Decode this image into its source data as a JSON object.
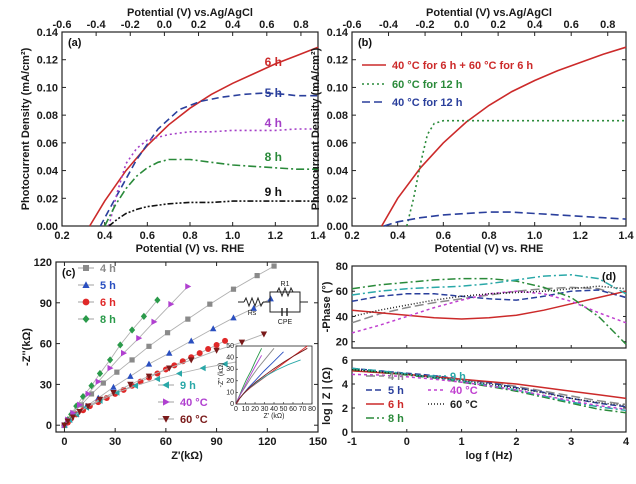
{
  "chart_data": [
    {
      "panel": "(a)",
      "type": "line",
      "xlabel": "Potential (V) vs. RHE",
      "x2label": "Potential (V) vs.Ag/AgCl",
      "ylabel": "Photocurrent Density (mA/cm²)",
      "xlim": [
        0.2,
        1.4
      ],
      "ylim": [
        0,
        0.14
      ],
      "x2lim": [
        -0.6,
        0.9
      ],
      "xticks": [
        "0.2",
        "0.4",
        "0.6",
        "0.8",
        "1.0",
        "1.2",
        "1.4"
      ],
      "x2ticks": [
        "-0.6",
        "-0.4",
        "-0.2",
        "0.0",
        "0.2",
        "0.4",
        "0.6",
        "0.8"
      ],
      "yticks": [
        "0.00",
        "0.02",
        "0.04",
        "0.06",
        "0.08",
        "0.10",
        "0.12",
        "0.14"
      ],
      "series": [
        {
          "name": "6 h",
          "color": "#cc2a2a",
          "dash": "",
          "x": [
            0.33,
            0.4,
            0.5,
            0.6,
            0.7,
            0.8,
            0.9,
            1.0,
            1.1,
            1.2,
            1.3,
            1.4
          ],
          "y": [
            0,
            0.018,
            0.04,
            0.058,
            0.073,
            0.085,
            0.095,
            0.103,
            0.11,
            0.117,
            0.123,
            0.129
          ]
        },
        {
          "name": "5 h",
          "color": "#2a3f9c",
          "dash": "7,4",
          "x": [
            0.38,
            0.45,
            0.55,
            0.65,
            0.75,
            0.85,
            0.95,
            1.05,
            1.15,
            1.25,
            1.3,
            1.4
          ],
          "y": [
            0,
            0.02,
            0.048,
            0.07,
            0.084,
            0.09,
            0.093,
            0.095,
            0.096,
            0.095,
            0.094,
            0.094
          ]
        },
        {
          "name": "4 h",
          "color": "#a43fc7",
          "dash": "2,3",
          "x": [
            0.42,
            0.46,
            0.5,
            0.55,
            0.6,
            0.7,
            0.8,
            0.9,
            1.0,
            1.1,
            1.2,
            1.3,
            1.4
          ],
          "y": [
            0,
            0.025,
            0.045,
            0.056,
            0.062,
            0.066,
            0.068,
            0.068,
            0.069,
            0.069,
            0.069,
            0.07,
            0.07
          ]
        },
        {
          "name": "8 h",
          "color": "#2a8a3a",
          "dash": "8,3,2,3",
          "x": [
            0.4,
            0.45,
            0.5,
            0.55,
            0.6,
            0.65,
            0.7,
            0.8,
            0.9,
            1.0,
            1.1,
            1.2,
            1.3,
            1.4
          ],
          "y": [
            0,
            0.015,
            0.027,
            0.036,
            0.042,
            0.046,
            0.048,
            0.048,
            0.046,
            0.044,
            0.043,
            0.042,
            0.041,
            0.041
          ]
        },
        {
          "name": "9 h",
          "color": "#111111",
          "dash": "6,2,2,2,2,2",
          "x": [
            0.42,
            0.46,
            0.5,
            0.55,
            0.6,
            0.7,
            0.8,
            0.9,
            1.0,
            1.1,
            1.2,
            1.3,
            1.4
          ],
          "y": [
            0,
            0.005,
            0.009,
            0.012,
            0.014,
            0.016,
            0.017,
            0.017,
            0.018,
            0.018,
            0.018,
            0.018,
            0.018
          ]
        }
      ]
    },
    {
      "panel": "(b)",
      "type": "line",
      "xlabel": "Potential (V) vs. RHE",
      "x2label": "Potential (V) vs.Ag/AgCl",
      "ylabel": "Photocurrent Density (mA/cm²)",
      "xlim": [
        0.2,
        1.4
      ],
      "ylim": [
        0,
        0.14
      ],
      "x2lim": [
        -0.6,
        0.9
      ],
      "xticks": [
        "0.2",
        "0.4",
        "0.6",
        "0.8",
        "1.0",
        "1.2",
        "1.4"
      ],
      "x2ticks": [
        "-0.6",
        "-0.4",
        "-0.2",
        "0.0",
        "0.2",
        "0.4",
        "0.6",
        "0.8"
      ],
      "yticks": [
        "0.00",
        "0.02",
        "0.04",
        "0.06",
        "0.08",
        "0.10",
        "0.12",
        "0.14"
      ],
      "legend": "top-right",
      "series": [
        {
          "name": "40 °C for 6 h + 60 °C for 6 h",
          "color": "#cc2a2a",
          "dash": "",
          "x": [
            0.33,
            0.4,
            0.5,
            0.6,
            0.7,
            0.8,
            0.9,
            1.0,
            1.1,
            1.2,
            1.3,
            1.4
          ],
          "y": [
            0,
            0.02,
            0.042,
            0.06,
            0.075,
            0.087,
            0.097,
            0.105,
            0.112,
            0.118,
            0.124,
            0.129
          ]
        },
        {
          "name": "60 °C for 12 h",
          "color": "#2a8a3a",
          "dash": "2,3",
          "x": [
            0.44,
            0.47,
            0.5,
            0.53,
            0.56,
            0.6,
            0.7,
            0.8,
            0.9,
            1.0,
            1.1,
            1.2,
            1.3,
            1.4
          ],
          "y": [
            0,
            0.02,
            0.045,
            0.066,
            0.074,
            0.076,
            0.076,
            0.076,
            0.076,
            0.076,
            0.076,
            0.076,
            0.076,
            0.076
          ]
        },
        {
          "name": "40 °C for 12 h",
          "color": "#2a3f9c",
          "dash": "8,4",
          "x": [
            0.34,
            0.4,
            0.5,
            0.6,
            0.7,
            0.8,
            0.9,
            1.0,
            1.1,
            1.2,
            1.3,
            1.4
          ],
          "y": [
            0,
            0.003,
            0.006,
            0.008,
            0.009,
            0.01,
            0.01,
            0.009,
            0.008,
            0.007,
            0.006,
            0.005
          ]
        }
      ]
    },
    {
      "panel": "(c)",
      "type": "scatter",
      "xlabel": "Z'(kΩ)",
      "ylabel": "-Z''(kΩ)",
      "xlim": [
        -5,
        150
      ],
      "ylim": [
        -5,
        120
      ],
      "xticks": [
        "0",
        "30",
        "60",
        "90",
        "120",
        "150"
      ],
      "yticks": [
        "0",
        "30",
        "60",
        "90",
        "120"
      ],
      "circuit_labels": [
        "Rs",
        "R1",
        "CPE"
      ],
      "series": [
        {
          "name": "4 h",
          "color": "#8a8a8a",
          "marker": "square",
          "x": [
            0,
            2,
            5,
            10,
            16,
            23,
            31,
            40,
            50,
            61,
            73,
            86,
            100,
            114,
            124
          ],
          "y": [
            0,
            4,
            9,
            15,
            23,
            31,
            39,
            48,
            58,
            68,
            78,
            89,
            100,
            110,
            117
          ]
        },
        {
          "name": "5 h",
          "color": "#2a4fc0",
          "marker": "triangle-up",
          "x": [
            0,
            3,
            7,
            13,
            20,
            29,
            39,
            50,
            62,
            75,
            88,
            100,
            112,
            122
          ],
          "y": [
            0,
            4,
            8,
            14,
            20,
            28,
            36,
            45,
            53,
            62,
            71,
            79,
            86,
            93
          ]
        },
        {
          "name": "6 h",
          "color": "#e02828",
          "marker": "circle",
          "x": [
            0,
            2,
            4,
            7,
            11,
            15,
            20,
            25,
            30,
            35,
            40,
            45,
            50,
            55,
            60,
            65,
            70,
            75,
            80,
            85,
            90,
            95
          ],
          "y": [
            0,
            2,
            5,
            8,
            11,
            14,
            17,
            20,
            23,
            26,
            29,
            32,
            35,
            38,
            41,
            44,
            47,
            50,
            53,
            56,
            59,
            62
          ]
        },
        {
          "name": "8 h",
          "color": "#2a9a4a",
          "marker": "diamond",
          "x": [
            0,
            2,
            4,
            7,
            11,
            16,
            21,
            27,
            33,
            40,
            47,
            55
          ],
          "y": [
            0,
            4,
            8,
            14,
            21,
            29,
            38,
            48,
            59,
            70,
            80,
            92
          ]
        },
        {
          "name": "9 h",
          "color": "#2aa8a8",
          "marker": "triangle-left",
          "x": [
            0,
            3,
            7,
            13,
            21,
            31,
            42,
            55,
            68,
            82,
            95,
            108,
            120
          ],
          "y": [
            0,
            4,
            8,
            13,
            18,
            24,
            29,
            34,
            38,
            42,
            45,
            48,
            50
          ]
        },
        {
          "name": "40 °C",
          "color": "#b040d0",
          "marker": "triangle-right",
          "x": [
            0,
            2,
            5,
            9,
            14,
            20,
            27,
            35,
            44,
            53,
            63,
            73
          ],
          "y": [
            0,
            4,
            9,
            15,
            23,
            32,
            42,
            53,
            64,
            76,
            89,
            102
          ]
        },
        {
          "name": "60 °C",
          "color": "#7a1a1a",
          "marker": "triangle-down",
          "x": [
            0,
            2,
            5,
            9,
            14,
            21,
            29,
            39,
            50,
            62,
            75,
            90,
            105,
            118
          ],
          "y": [
            0,
            3,
            6,
            10,
            14,
            19,
            24,
            30,
            36,
            42,
            48,
            55,
            61,
            67
          ]
        }
      ],
      "inset": {
        "xlabel": "Z' (kΩ)",
        "ylabel": "-Z'' (kΩ)",
        "xlim": [
          0,
          80
        ],
        "ylim": [
          0,
          50
        ],
        "xticks": [
          "0",
          "10",
          "20",
          "30",
          "40",
          "50",
          "60",
          "70",
          "80"
        ],
        "yticks": [
          "0",
          "10",
          "20",
          "30",
          "40",
          "50"
        ]
      }
    },
    {
      "panel": "(d)",
      "type": "line",
      "xlabel": "log f (Hz)",
      "ylabel_top": "-Phase (°)",
      "ylabel_bottom": "log | Z | (Ω)",
      "xlim": [
        -1,
        4
      ],
      "xticks": [
        "-1",
        "0",
        "1",
        "2",
        "3",
        "4"
      ],
      "ylim_top": [
        15,
        80
      ],
      "yticks_top": [
        "20",
        "40",
        "60",
        "80"
      ],
      "ylim_bottom": [
        0,
        6
      ],
      "yticks_bottom": [
        "0",
        "2",
        "4",
        "6"
      ],
      "series": [
        {
          "name": "4 h",
          "color": "#8a8a8a",
          "dash": "9,4",
          "x": [
            -1,
            -0.5,
            0,
            0.5,
            1,
            1.5,
            2,
            2.5,
            3,
            3.5,
            4
          ],
          "phase": [
            35,
            42,
            47,
            51,
            54,
            57,
            60,
            62,
            63,
            62,
            55
          ],
          "logz": [
            5.1,
            4.95,
            4.8,
            4.6,
            4.4,
            4.15,
            3.8,
            3.4,
            3.0,
            2.6,
            2.3
          ]
        },
        {
          "name": "5 h",
          "color": "#2a3f9c",
          "dash": "6,3",
          "x": [
            -1,
            -0.5,
            0,
            0.5,
            1,
            1.5,
            2,
            2.5,
            3,
            3.5,
            4
          ],
          "phase": [
            52,
            56,
            58,
            58,
            56,
            54,
            53,
            56,
            60,
            61,
            55
          ],
          "logz": [
            5.3,
            5.1,
            4.9,
            4.7,
            4.4,
            4.1,
            3.7,
            3.3,
            2.8,
            2.4,
            2.1
          ]
        },
        {
          "name": "6 h",
          "color": "#cc2a2a",
          "dash": "",
          "x": [
            -1,
            -0.5,
            0,
            0.5,
            1,
            1.5,
            2,
            2.5,
            3,
            3.5,
            4
          ],
          "phase": [
            45,
            43,
            41,
            39,
            38,
            39,
            41,
            45,
            50,
            55,
            60
          ],
          "logz": [
            5.1,
            4.95,
            4.8,
            4.6,
            4.4,
            4.2,
            4.0,
            3.7,
            3.4,
            3.1,
            2.8
          ]
        },
        {
          "name": "8 h",
          "color": "#2a8a3a",
          "dash": "8,3,2,3",
          "x": [
            -1,
            -0.5,
            0,
            0.5,
            1,
            1.5,
            2,
            2.5,
            3,
            3.5,
            4
          ],
          "phase": [
            62,
            65,
            67,
            69,
            70,
            70,
            68,
            63,
            55,
            40,
            18
          ],
          "logz": [
            5.2,
            5.0,
            4.75,
            4.5,
            4.15,
            3.8,
            3.4,
            2.9,
            2.4,
            1.9,
            1.6
          ]
        },
        {
          "name": "9 h",
          "color": "#2aa8a8",
          "dash": "8,3,2,3",
          "x": [
            -1,
            -0.5,
            0,
            0.5,
            1,
            1.5,
            2,
            2.5,
            3,
            3.5,
            4
          ],
          "phase": [
            57,
            60,
            62,
            63,
            64,
            66,
            69,
            72,
            73,
            70,
            58
          ],
          "logz": [
            5.3,
            5.1,
            4.85,
            4.55,
            4.25,
            3.9,
            3.5,
            3.0,
            2.5,
            2.1,
            1.8
          ]
        },
        {
          "name": "40 °C",
          "color": "#c040d0",
          "dash": "3,3",
          "x": [
            -1,
            -0.5,
            0,
            0.5,
            1,
            1.5,
            2,
            2.5,
            3,
            3.5,
            4
          ],
          "phase": [
            27,
            33,
            40,
            47,
            53,
            58,
            60,
            58,
            52,
            43,
            35
          ],
          "logz": [
            4.8,
            4.75,
            4.6,
            4.4,
            4.15,
            3.85,
            3.5,
            3.05,
            2.6,
            2.2,
            1.9
          ]
        },
        {
          "name": "60 °C",
          "color": "#222222",
          "dash": "1,2",
          "x": [
            -1,
            -0.5,
            0,
            0.5,
            1,
            1.5,
            2,
            2.5,
            3,
            3.5,
            4
          ],
          "phase": [
            40,
            45,
            49,
            53,
            56,
            58,
            59,
            60,
            62,
            64,
            62
          ],
          "logz": [
            5.2,
            5.0,
            4.8,
            4.55,
            4.3,
            4.0,
            3.65,
            3.25,
            2.8,
            2.45,
            2.2
          ]
        }
      ]
    }
  ]
}
